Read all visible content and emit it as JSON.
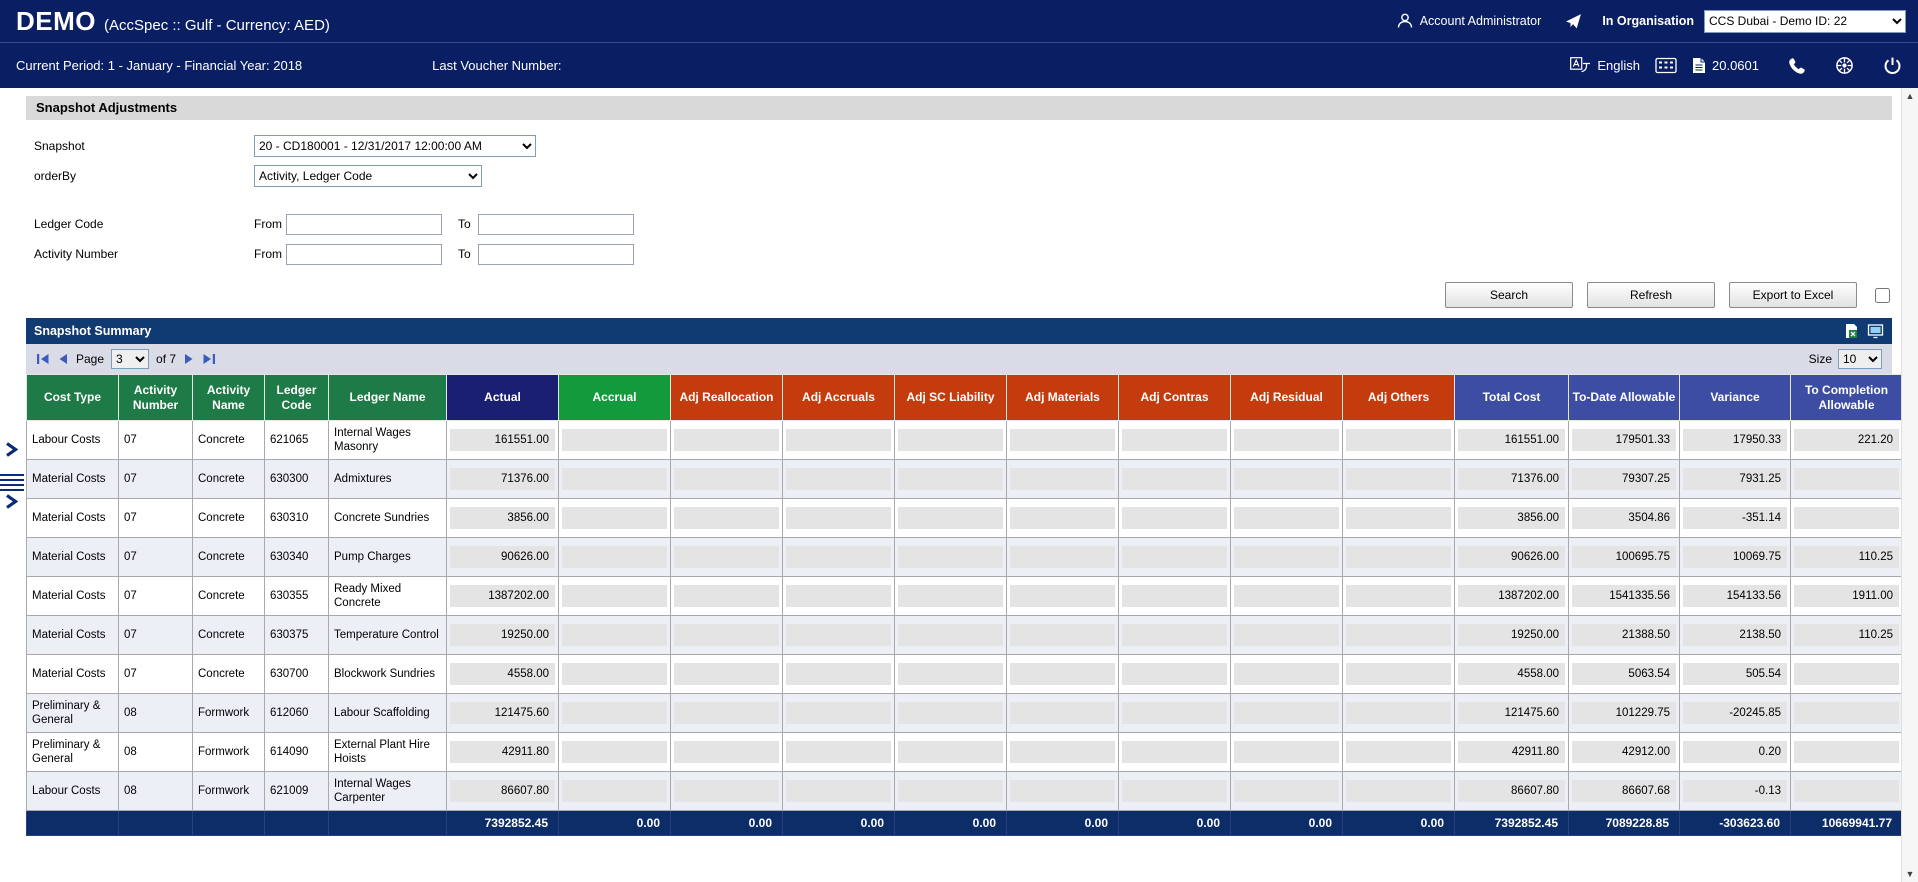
{
  "header": {
    "brand": "DEMO",
    "brand_suffix": "(AccSpec :: Gulf - Currency: AED)",
    "user_label": "Account Administrator",
    "org_label": "In Organisation",
    "org_value": "CCS Dubai - Demo ID: 22"
  },
  "subheader": {
    "current_period": "Current Period: 1 - January - Financial Year: 2018",
    "last_voucher_label": "Last Voucher Number:",
    "language_label": "English",
    "version_label": "20.0601"
  },
  "page_title": "Snapshot Adjustments",
  "filters": {
    "snapshot_label": "Snapshot",
    "snapshot_value": "20 - CD180001 - 12/31/2017 12:00:00 AM",
    "orderby_label": "orderBy",
    "orderby_value": "Activity, Ledger Code",
    "ledger_code_label": "Ledger Code",
    "activity_number_label": "Activity Number",
    "from_label": "From",
    "to_label": "To"
  },
  "actions": {
    "search": "Search",
    "refresh": "Refresh",
    "export": "Export to Excel"
  },
  "summary": {
    "title": "Snapshot Summary",
    "pager": {
      "page_label": "Page",
      "page_value": "3",
      "of_label": "of 7",
      "size_label": "Size",
      "size_value": "10"
    }
  },
  "colors": {
    "topbar": "#0a1f63",
    "summary_bar": "#103a72",
    "footer_row": "#0d2d68",
    "header_green": "#1e7a46",
    "header_bright_green": "#129a3d",
    "header_navy": "#1b1f72",
    "header_red": "#c43b0e",
    "header_blue": "#3c4da3"
  },
  "table": {
    "headers": [
      {
        "label": "Cost Type",
        "bg": "#1e7a46"
      },
      {
        "label": "Activity Number",
        "bg": "#1e7a46"
      },
      {
        "label": "Activity Name",
        "bg": "#1e7a46"
      },
      {
        "label": "Ledger Code",
        "bg": "#1e7a46"
      },
      {
        "label": "Ledger Name",
        "bg": "#1e7a46"
      },
      {
        "label": "Actual",
        "bg": "#1b1f72"
      },
      {
        "label": "Accrual",
        "bg": "#129a3d"
      },
      {
        "label": "Adj Reallocation",
        "bg": "#c43b0e"
      },
      {
        "label": "Adj Accruals",
        "bg": "#c43b0e"
      },
      {
        "label": "Adj SC Liability",
        "bg": "#c43b0e"
      },
      {
        "label": "Adj Materials",
        "bg": "#c43b0e"
      },
      {
        "label": "Adj Contras",
        "bg": "#c43b0e"
      },
      {
        "label": "Adj Residual",
        "bg": "#c43b0e"
      },
      {
        "label": "Adj Others",
        "bg": "#c43b0e"
      },
      {
        "label": "Total Cost",
        "bg": "#3c4da3"
      },
      {
        "label": "To-Date Allowable",
        "bg": "#3c4da3"
      },
      {
        "label": "Variance",
        "bg": "#3c4da3"
      },
      {
        "label": "To Completion Allowable",
        "bg": "#3c4da3"
      }
    ],
    "rows": [
      [
        "Labour Costs",
        "07",
        "Concrete",
        "621065",
        "Internal Wages Masonry",
        "161551.00",
        "",
        "",
        "",
        "",
        "",
        "",
        "",
        "",
        "161551.00",
        "179501.33",
        "17950.33",
        "221.20"
      ],
      [
        "Material Costs",
        "07",
        "Concrete",
        "630300",
        "Admixtures",
        "71376.00",
        "",
        "",
        "",
        "",
        "",
        "",
        "",
        "",
        "71376.00",
        "79307.25",
        "7931.25",
        ""
      ],
      [
        "Material Costs",
        "07",
        "Concrete",
        "630310",
        "Concrete Sundries",
        "3856.00",
        "",
        "",
        "",
        "",
        "",
        "",
        "",
        "",
        "3856.00",
        "3504.86",
        "-351.14",
        ""
      ],
      [
        "Material Costs",
        "07",
        "Concrete",
        "630340",
        "Pump Charges",
        "90626.00",
        "",
        "",
        "",
        "",
        "",
        "",
        "",
        "",
        "90626.00",
        "100695.75",
        "10069.75",
        "110.25"
      ],
      [
        "Material Costs",
        "07",
        "Concrete",
        "630355",
        "Ready Mixed Concrete",
        "1387202.00",
        "",
        "",
        "",
        "",
        "",
        "",
        "",
        "",
        "1387202.00",
        "1541335.56",
        "154133.56",
        "1911.00"
      ],
      [
        "Material Costs",
        "07",
        "Concrete",
        "630375",
        "Temperature Control",
        "19250.00",
        "",
        "",
        "",
        "",
        "",
        "",
        "",
        "",
        "19250.00",
        "21388.50",
        "2138.50",
        "110.25"
      ],
      [
        "Material Costs",
        "07",
        "Concrete",
        "630700",
        "Blockwork Sundries",
        "4558.00",
        "",
        "",
        "",
        "",
        "",
        "",
        "",
        "",
        "4558.00",
        "5063.54",
        "505.54",
        ""
      ],
      [
        "Preliminary & General",
        "08",
        "Formwork",
        "612060",
        "Labour Scaffolding",
        "121475.60",
        "",
        "",
        "",
        "",
        "",
        "",
        "",
        "",
        "121475.60",
        "101229.75",
        "-20245.85",
        ""
      ],
      [
        "Preliminary & General",
        "08",
        "Formwork",
        "614090",
        "External Plant Hire Hoists",
        "42911.80",
        "",
        "",
        "",
        "",
        "",
        "",
        "",
        "",
        "42911.80",
        "42912.00",
        "0.20",
        ""
      ],
      [
        "Labour Costs",
        "08",
        "Formwork",
        "621009",
        "Internal Wages Carpenter",
        "86607.80",
        "",
        "",
        "",
        "",
        "",
        "",
        "",
        "",
        "86607.80",
        "86607.68",
        "-0.13",
        ""
      ]
    ],
    "totals": [
      "",
      "",
      "",
      "",
      "",
      "7392852.45",
      "0.00",
      "0.00",
      "0.00",
      "0.00",
      "0.00",
      "0.00",
      "0.00",
      "0.00",
      "7392852.45",
      "7089228.85",
      "-303623.60",
      "10669941.77"
    ]
  }
}
